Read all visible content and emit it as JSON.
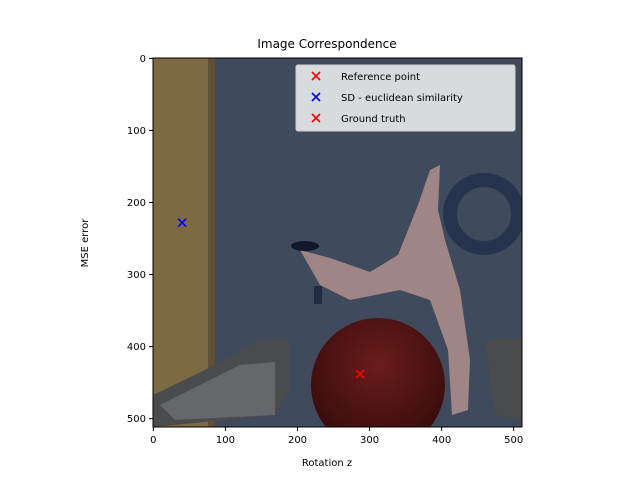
{
  "chart_data": {
    "type": "scatter",
    "title": "Image Correspondence",
    "xlabel": "Rotation z",
    "ylabel": "MSE error",
    "xlim": [
      -0.5,
      511.5
    ],
    "ylim": [
      511.5,
      -0.5
    ],
    "y_inverted": true,
    "xticks": [
      0,
      100,
      200,
      300,
      400,
      500
    ],
    "yticks": [
      0,
      100,
      200,
      300,
      400,
      500
    ],
    "xtick_labels": [
      "0",
      "100",
      "200",
      "300",
      "400",
      "500"
    ],
    "ytick_labels": [
      "0",
      "100",
      "200",
      "300",
      "400",
      "500"
    ],
    "grid": false,
    "legend_placement": "upper right",
    "background_image": "rendered-scene-image",
    "series": [
      {
        "name": "Reference point",
        "marker": "x",
        "color": "#ff0000",
        "points": []
      },
      {
        "name": "SD - euclidean similarity",
        "marker": "x",
        "color": "#0000ff",
        "points": [
          {
            "x": 40,
            "y": 228
          }
        ]
      },
      {
        "name": "Ground truth",
        "marker": "x",
        "color": "#ff0000",
        "points": [
          {
            "x": 287,
            "y": 438
          }
        ]
      }
    ]
  }
}
